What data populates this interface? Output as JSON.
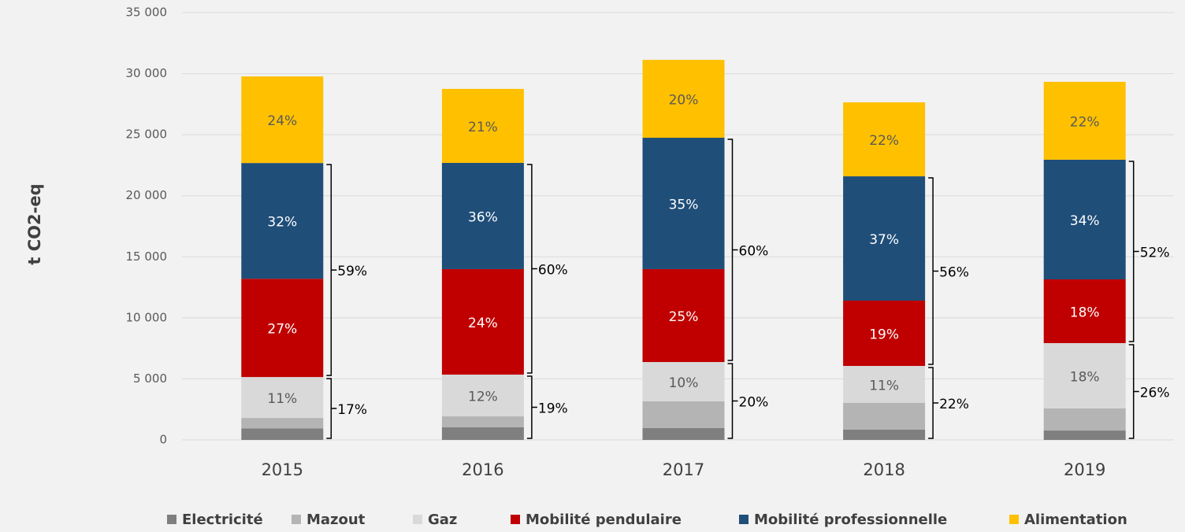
{
  "chart_data": {
    "type": "stacked_bar",
    "y_label": "t CO2-eq",
    "categories": [
      "2015",
      "2016",
      "2017",
      "2018",
      "2019"
    ],
    "series": [
      {
        "name": "Electricité",
        "color": "#7f7f7f",
        "values": [
          950,
          1030,
          970,
          840,
          770
        ]
      },
      {
        "name": "Mazout",
        "color": "#b4b4b4",
        "values": [
          850,
          900,
          2190,
          2190,
          1810
        ]
      },
      {
        "name": "Gaz",
        "color": "#d9d9d9",
        "values": [
          3350,
          3420,
          3220,
          3030,
          5350
        ],
        "labels": [
          "11%",
          "12%",
          "10%",
          "11%",
          "18%"
        ]
      },
      {
        "name": "Mobilité pendulaire",
        "color": "#c00000",
        "values": [
          8050,
          8640,
          7610,
          5350,
          5220
        ],
        "labels": [
          "27%",
          "24%",
          "25%",
          "19%",
          "18%"
        ]
      },
      {
        "name": "Mobilité professionnelle",
        "color": "#1f4e79",
        "values": [
          9480,
          8700,
          10760,
          10180,
          9800
        ],
        "labels": [
          "32%",
          "36%",
          "35%",
          "37%",
          "34%"
        ]
      },
      {
        "name": "Alimentation",
        "color": "#ffc000",
        "values": [
          7090,
          6060,
          6380,
          6060,
          6380
        ],
        "labels": [
          "24%",
          "21%",
          "20%",
          "22%",
          "22%"
        ]
      }
    ],
    "brackets": [
      {
        "series_from": 3,
        "series_to": 4,
        "labels": [
          "59%",
          "60%",
          "60%",
          "56%",
          "52%"
        ]
      },
      {
        "series_from": 0,
        "series_to": 2,
        "labels": [
          "17%",
          "19%",
          "20%",
          "22%",
          "26%"
        ]
      }
    ],
    "ylim": [
      0,
      35000
    ],
    "yticks": [
      0,
      {
        "value": 5000,
        "label": "5 000"
      },
      {
        "value": 10000,
        "label": "10 000"
      },
      {
        "value": 15000,
        "label": "15 000"
      },
      {
        "value": 20000,
        "label": "20 000"
      },
      {
        "value": 25000,
        "label": "25 000"
      },
      {
        "value": 30000,
        "label": "30 000"
      },
      {
        "value": 35000,
        "label": "35 000"
      }
    ],
    "grid": true
  }
}
